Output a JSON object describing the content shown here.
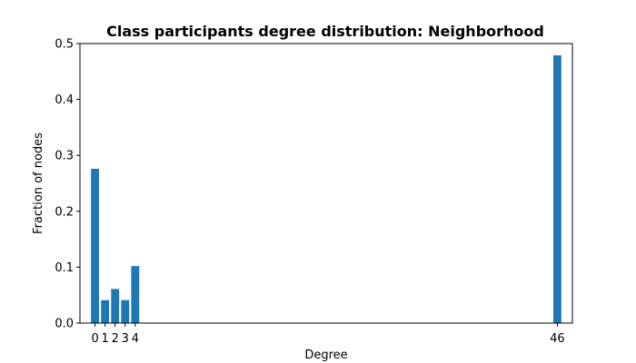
{
  "chart_data": {
    "type": "bar",
    "title": "Class participants degree distribution: Neighborhood",
    "xlabel": "Degree",
    "ylabel": "Fraction of nodes",
    "x": [
      0,
      1,
      2,
      3,
      4,
      46
    ],
    "values": [
      0.276,
      0.041,
      0.061,
      0.041,
      0.102,
      0.479
    ],
    "xlim": [
      -1.5,
      47.5
    ],
    "ylim": [
      0,
      0.5
    ],
    "xticks": [
      "0",
      "1",
      "2",
      "3",
      "4",
      "46"
    ],
    "yticks": [
      "0.0",
      "0.1",
      "0.2",
      "0.3",
      "0.4",
      "0.5"
    ],
    "bar_color": "#1f77b4",
    "grid": false,
    "legend": "none"
  }
}
